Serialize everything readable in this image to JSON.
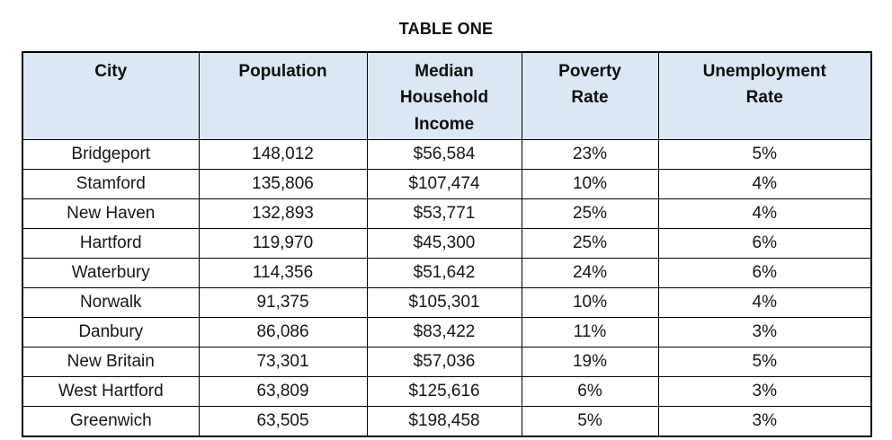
{
  "title": "TABLE ONE",
  "colors": {
    "header_bg": "#dbe7f5",
    "border": "#000000",
    "text": "#161616"
  },
  "table": {
    "columns": [
      {
        "key": "city",
        "label": "City"
      },
      {
        "key": "population",
        "label": "Population"
      },
      {
        "key": "median_household_income",
        "label": "Median\nHousehold\nIncome"
      },
      {
        "key": "poverty_rate",
        "label": "Poverty\nRate"
      },
      {
        "key": "unemployment_rate",
        "label": "Unemployment\nRate"
      }
    ],
    "rows": [
      {
        "city": "Bridgeport",
        "population": "148,012",
        "median_household_income": "$56,584",
        "poverty_rate": "23%",
        "unemployment_rate": "5%"
      },
      {
        "city": "Stamford",
        "population": "135,806",
        "median_household_income": "$107,474",
        "poverty_rate": "10%",
        "unemployment_rate": "4%"
      },
      {
        "city": "New Haven",
        "population": "132,893",
        "median_household_income": "$53,771",
        "poverty_rate": "25%",
        "unemployment_rate": "4%"
      },
      {
        "city": "Hartford",
        "population": "119,970",
        "median_household_income": "$45,300",
        "poverty_rate": "25%",
        "unemployment_rate": "6%"
      },
      {
        "city": "Waterbury",
        "population": "114,356",
        "median_household_income": "$51,642",
        "poverty_rate": "24%",
        "unemployment_rate": "6%"
      },
      {
        "city": "Norwalk",
        "population": "91,375",
        "median_household_income": "$105,301",
        "poverty_rate": "10%",
        "unemployment_rate": "4%"
      },
      {
        "city": "Danbury",
        "population": "86,086",
        "median_household_income": "$83,422",
        "poverty_rate": "11%",
        "unemployment_rate": "3%"
      },
      {
        "city": "New Britain",
        "population": "73,301",
        "median_household_income": "$57,036",
        "poverty_rate": "19%",
        "unemployment_rate": "5%"
      },
      {
        "city": "West Hartford",
        "population": "63,809",
        "median_household_income": "$125,616",
        "poverty_rate": "6%",
        "unemployment_rate": "3%"
      },
      {
        "city": "Greenwich",
        "population": "63,505",
        "median_household_income": "$198,458",
        "poverty_rate": "5%",
        "unemployment_rate": "3%"
      }
    ]
  }
}
